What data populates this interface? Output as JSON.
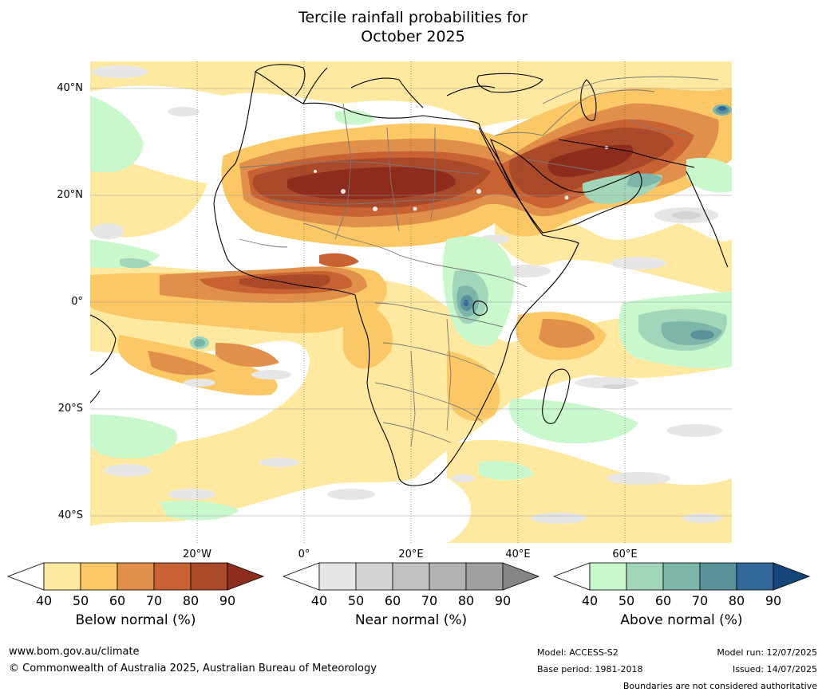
{
  "title": {
    "line1": "Tercile rainfall probabilities for",
    "line2": "October 2025"
  },
  "map": {
    "lat_labels": [
      "40°N",
      "20°N",
      "0°",
      "20°S",
      "40°S"
    ],
    "lon_labels": [
      "20°W",
      "0°",
      "20°E",
      "40°E",
      "60°E"
    ]
  },
  "colorbars": [
    {
      "name": "below",
      "label": "Below normal (%)",
      "ticks": [
        "40",
        "50",
        "60",
        "70",
        "80",
        "90"
      ],
      "colors": [
        "#ffffff",
        "#ffe9a0",
        "#fcc865",
        "#e0904a",
        "#c86232",
        "#a9492a",
        "#8e2d1e"
      ]
    },
    {
      "name": "near",
      "label": "Near normal (%)",
      "ticks": [
        "40",
        "50",
        "60",
        "70",
        "80",
        "90"
      ],
      "colors": [
        "#ffffff",
        "#e6e6e6",
        "#d4d4d4",
        "#c2c2c2",
        "#b2b2b2",
        "#a0a0a0",
        "#858585"
      ]
    },
    {
      "name": "above",
      "label": "Above normal (%)",
      "ticks": [
        "40",
        "50",
        "60",
        "70",
        "80",
        "90"
      ],
      "colors": [
        "#ffffff",
        "#c8f8cc",
        "#a2d6bb",
        "#7db6a8",
        "#5a929c",
        "#34689a",
        "#15467a"
      ]
    }
  ],
  "footer": {
    "website": "www.bom.gov.au/climate",
    "copyright": "© Commonwealth of Australia 2025, Australian Bureau of Meteorology",
    "model": "Model: ACCESS-S2",
    "base_period": "Base period: 1981-2018",
    "model_run": "Model run: 12/07/2025",
    "issued": "Issued: 14/07/2025",
    "disclaimer": "Boundaries are not considered authoritative"
  }
}
